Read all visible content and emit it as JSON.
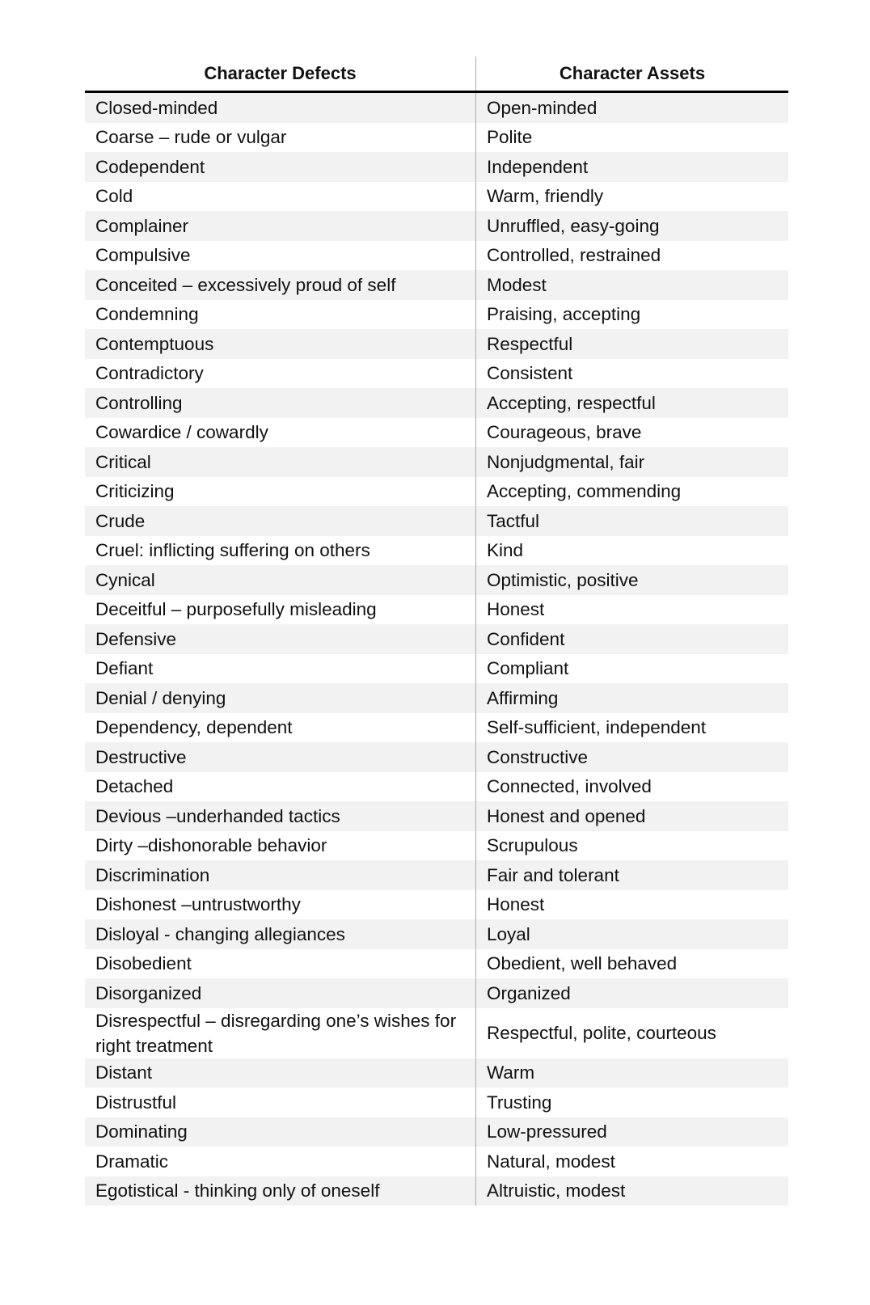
{
  "table": {
    "headers": [
      "Character Defects",
      "Character Assets"
    ],
    "rows": [
      [
        "Closed-minded",
        "Open-minded"
      ],
      [
        "Coarse – rude or vulgar",
        "Polite"
      ],
      [
        "Codependent",
        "Independent"
      ],
      [
        "Cold",
        "Warm, friendly"
      ],
      [
        "Complainer",
        "Unruffled, easy-going"
      ],
      [
        "Compulsive",
        "Controlled, restrained"
      ],
      [
        "Conceited – excessively proud of self",
        "Modest"
      ],
      [
        "Condemning",
        "Praising, accepting"
      ],
      [
        "Contemptuous",
        "Respectful"
      ],
      [
        "Contradictory",
        "Consistent"
      ],
      [
        "Controlling",
        "Accepting, respectful"
      ],
      [
        "Cowardice / cowardly",
        "Courageous, brave"
      ],
      [
        "Critical",
        "Nonjudgmental, fair"
      ],
      [
        "Criticizing",
        "Accepting, commending"
      ],
      [
        "Crude",
        "Tactful"
      ],
      [
        "Cruel: inflicting suffering on others",
        "Kind"
      ],
      [
        "Cynical",
        "Optimistic, positive"
      ],
      [
        "Deceitful – purposefully misleading",
        "Honest"
      ],
      [
        "Defensive",
        "Confident"
      ],
      [
        "Defiant",
        "Compliant"
      ],
      [
        "Denial / denying",
        "Affirming"
      ],
      [
        "Dependency, dependent",
        "Self-sufficient, independent"
      ],
      [
        "Destructive",
        "Constructive"
      ],
      [
        "Detached",
        "Connected, involved"
      ],
      [
        "Devious –underhanded tactics",
        "Honest and opened"
      ],
      [
        "Dirty –dishonorable behavior",
        "Scrupulous"
      ],
      [
        "Discrimination",
        "Fair and tolerant"
      ],
      [
        "Dishonest –untrustworthy",
        "Honest"
      ],
      [
        "Disloyal - changing allegiances",
        "Loyal"
      ],
      [
        "Disobedient",
        "Obedient, well behaved"
      ],
      [
        "Disorganized",
        "Organized"
      ],
      [
        "Disrespectful – disregarding one’s wishes for right treatment",
        "Respectful, polite, courteous"
      ],
      [
        "Distant",
        "Warm"
      ],
      [
        "Distrustful",
        "Trusting"
      ],
      [
        "Dominating",
        "Low-pressured"
      ],
      [
        "Dramatic",
        "Natural, modest"
      ],
      [
        "Egotistical - thinking only of oneself",
        "Altruistic, modest"
      ]
    ]
  }
}
